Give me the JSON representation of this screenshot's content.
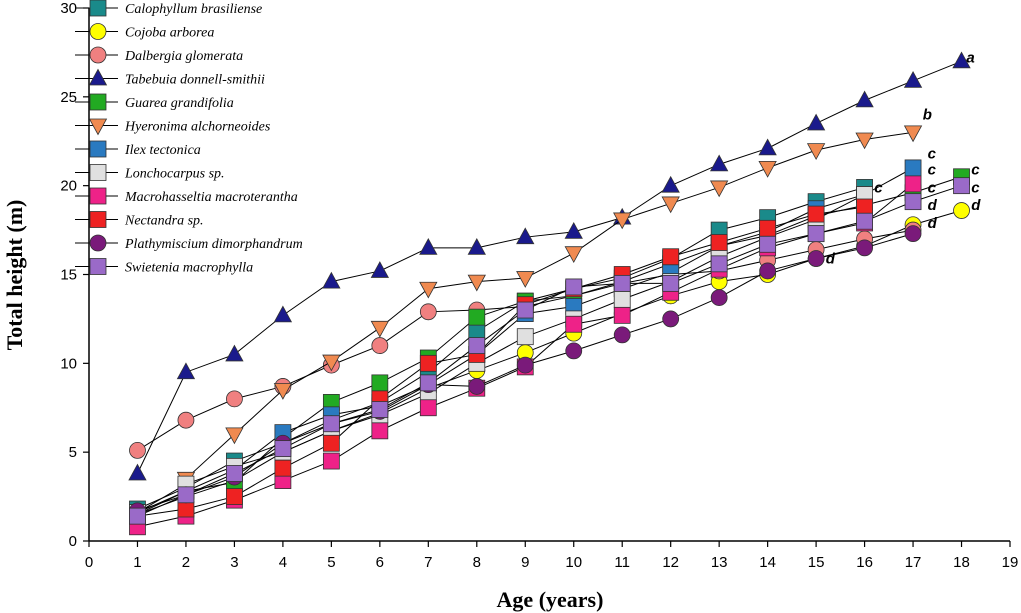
{
  "chart_data": {
    "type": "line",
    "title": "",
    "xlabel": "Age (years)",
    "ylabel": "Total height (m)",
    "xlim": [
      0,
      19
    ],
    "ylim": [
      0,
      30
    ],
    "xticks": [
      0,
      1,
      2,
      3,
      4,
      5,
      6,
      7,
      8,
      9,
      10,
      11,
      12,
      13,
      14,
      15,
      16,
      17,
      18,
      19
    ],
    "yticks": [
      0,
      5,
      10,
      15,
      20,
      25,
      30
    ],
    "grid": false,
    "legend_position": "top-left",
    "series": [
      {
        "name": "Calophyllum brasiliense",
        "marker": "square",
        "color": "#1a8a8a",
        "x": [
          1,
          2,
          3,
          4,
          5,
          6,
          7,
          8,
          9,
          10,
          11,
          12,
          13,
          14,
          15,
          16
        ],
        "y": [
          1.8,
          3.0,
          4.5,
          5.5,
          6.8,
          7.8,
          9.5,
          11.8,
          13.5,
          14.2,
          14.8,
          15.9,
          17.5,
          18.2,
          19.1,
          19.9
        ],
        "group": "c"
      },
      {
        "name": "Cojoba arborea",
        "marker": "circle",
        "color": "#ffff00",
        "x": [
          1,
          2,
          3,
          4,
          5,
          6,
          7,
          8,
          9,
          10,
          11,
          12,
          13,
          14,
          15,
          16,
          17,
          18
        ],
        "y": [
          1.5,
          2.5,
          3.4,
          5.0,
          6.2,
          7.2,
          8.6,
          9.6,
          10.6,
          11.7,
          12.8,
          13.8,
          14.6,
          15.0,
          15.9,
          16.6,
          17.8,
          18.6
        ],
        "group": "d"
      },
      {
        "name": "Dalbergia glomerata",
        "marker": "circle",
        "color": "#f08080",
        "x": [
          1,
          2,
          3,
          4,
          5,
          6,
          7,
          8,
          9,
          10,
          11,
          12,
          13,
          14,
          15,
          16,
          17
        ],
        "y": [
          5.1,
          6.8,
          8.0,
          8.7,
          9.9,
          11.0,
          12.9,
          13.0,
          13.2,
          13.8,
          14.5,
          15.0,
          15.2,
          15.8,
          16.4,
          17.0,
          17.5
        ],
        "group": "d"
      },
      {
        "name": "Tabebuia donnell-smithii",
        "marker": "triangle",
        "color": "#1a1a8c",
        "x": [
          1,
          2,
          3,
          4,
          5,
          6,
          7,
          8,
          9,
          10,
          11,
          12,
          13,
          14,
          15,
          16,
          17,
          18
        ],
        "y": [
          3.8,
          9.5,
          10.5,
          12.7,
          14.6,
          15.2,
          16.5,
          16.5,
          17.1,
          17.4,
          18.2,
          20.0,
          21.2,
          22.1,
          23.5,
          24.8,
          25.9,
          27.0
        ],
        "group": "a"
      },
      {
        "name": "Guarea grandifolia",
        "marker": "square",
        "color": "#22aa22",
        "x": [
          1,
          2,
          3,
          4,
          5,
          6,
          7,
          8,
          9,
          10,
          11,
          12,
          13,
          14,
          15,
          16,
          17,
          18
        ],
        "y": [
          1.6,
          2.8,
          3.3,
          5.8,
          7.8,
          8.9,
          10.3,
          12.6,
          13.5,
          13.8,
          14.6,
          15.6,
          16.6,
          17.2,
          18.3,
          18.9,
          19.6,
          20.5
        ],
        "group": "c"
      },
      {
        "name": "Hyeronima alchorneoides",
        "marker": "triangle-down",
        "color": "#f08a50",
        "x": [
          2,
          3,
          4,
          5,
          6,
          7,
          8,
          9,
          10,
          11,
          12,
          13,
          14,
          15,
          16,
          17
        ],
        "y": [
          3.5,
          6.0,
          8.5,
          10.1,
          12.0,
          14.2,
          14.6,
          14.8,
          16.2,
          18.1,
          19.0,
          19.9,
          21.0,
          22.0,
          22.6,
          23.0
        ],
        "group": "b"
      },
      {
        "name": "Ilex tectonica",
        "marker": "square",
        "color": "#2a7ac0",
        "x": [
          1,
          2,
          3,
          4,
          5,
          6,
          7,
          8,
          9,
          10,
          11,
          12,
          13,
          14,
          15,
          16,
          17
        ],
        "y": [
          1.5,
          2.8,
          4.0,
          6.1,
          7.1,
          7.6,
          8.8,
          10.5,
          12.8,
          13.2,
          14.2,
          15.1,
          16.6,
          17.4,
          18.7,
          19.5,
          21.0
        ],
        "group": "c"
      },
      {
        "name": "Lonchocarpus sp.",
        "marker": "square",
        "color": "#e0e0e0",
        "x": [
          1,
          2,
          3,
          4,
          5,
          6,
          7,
          8,
          9,
          10,
          11,
          12,
          13,
          14,
          15,
          16
        ],
        "y": [
          1.6,
          3.2,
          4.2,
          5.0,
          6.2,
          7.1,
          8.3,
          10.0,
          11.5,
          12.5,
          13.6,
          14.6,
          16.0,
          17.1,
          18.1,
          19.5
        ],
        "group": "c"
      },
      {
        "name": "Macrohasseltia macroterantha",
        "marker": "square",
        "color": "#ee2288",
        "x": [
          1,
          2,
          3,
          4,
          5,
          6,
          7,
          8,
          9,
          10,
          11,
          12,
          13,
          14,
          15,
          16,
          17
        ],
        "y": [
          0.8,
          1.4,
          2.3,
          3.4,
          4.5,
          6.2,
          7.5,
          8.6,
          9.8,
          12.2,
          12.7,
          14.0,
          15.3,
          16.5,
          17.3,
          17.9,
          20.1
        ],
        "group": "c"
      },
      {
        "name": "Nectandra sp.",
        "marker": "square",
        "color": "#ee2222",
        "x": [
          1,
          2,
          3,
          4,
          5,
          6,
          7,
          8,
          9,
          10,
          11,
          12,
          13,
          14,
          15,
          16
        ],
        "y": [
          1.4,
          1.8,
          2.5,
          4.1,
          5.5,
          8.0,
          10.0,
          10.5,
          13.3,
          14.2,
          15.0,
          16.0,
          16.8,
          17.6,
          18.4,
          18.8
        ],
        "group": "c"
      },
      {
        "name": "Plathymiscium dimorphandrum",
        "marker": "circle",
        "color": "#7a1a7a",
        "x": [
          1,
          2,
          3,
          4,
          5,
          6,
          7,
          8,
          9,
          10,
          11,
          12,
          13,
          14,
          15,
          16,
          17
        ],
        "y": [
          1.7,
          2.6,
          3.6,
          5.5,
          6.6,
          7.3,
          8.8,
          8.7,
          9.9,
          10.7,
          11.6,
          12.5,
          13.7,
          15.2,
          15.9,
          16.5,
          17.3
        ],
        "group": "d"
      },
      {
        "name": "Swietenia macrophylla",
        "marker": "square",
        "color": "#9a6ac8",
        "x": [
          1,
          2,
          3,
          4,
          5,
          6,
          7,
          8,
          9,
          10,
          11,
          12,
          13,
          14,
          15,
          16,
          17,
          18
        ],
        "y": [
          1.4,
          2.6,
          3.8,
          5.2,
          6.6,
          7.4,
          8.9,
          11.0,
          13.0,
          14.3,
          14.5,
          14.5,
          15.6,
          16.7,
          17.3,
          18.0,
          19.1,
          20.0
        ],
        "group": "c"
      }
    ],
    "annotations": [
      {
        "text": "a",
        "x": 18.1,
        "y": 27.2
      },
      {
        "text": "b",
        "x": 17.2,
        "y": 24.0
      },
      {
        "text": "c",
        "x": 17.3,
        "y": 21.8
      },
      {
        "text": "c",
        "x": 17.3,
        "y": 20.9
      },
      {
        "text": "c",
        "x": 18.2,
        "y": 20.9
      },
      {
        "text": "c",
        "x": 16.2,
        "y": 19.9
      },
      {
        "text": "c",
        "x": 17.3,
        "y": 19.9
      },
      {
        "text": "c",
        "x": 18.2,
        "y": 19.9
      },
      {
        "text": "d",
        "x": 17.3,
        "y": 18.9
      },
      {
        "text": "d",
        "x": 18.2,
        "y": 18.9
      },
      {
        "text": "d",
        "x": 17.3,
        "y": 17.9
      },
      {
        "text": "d",
        "x": 15.2,
        "y": 15.9
      }
    ]
  }
}
